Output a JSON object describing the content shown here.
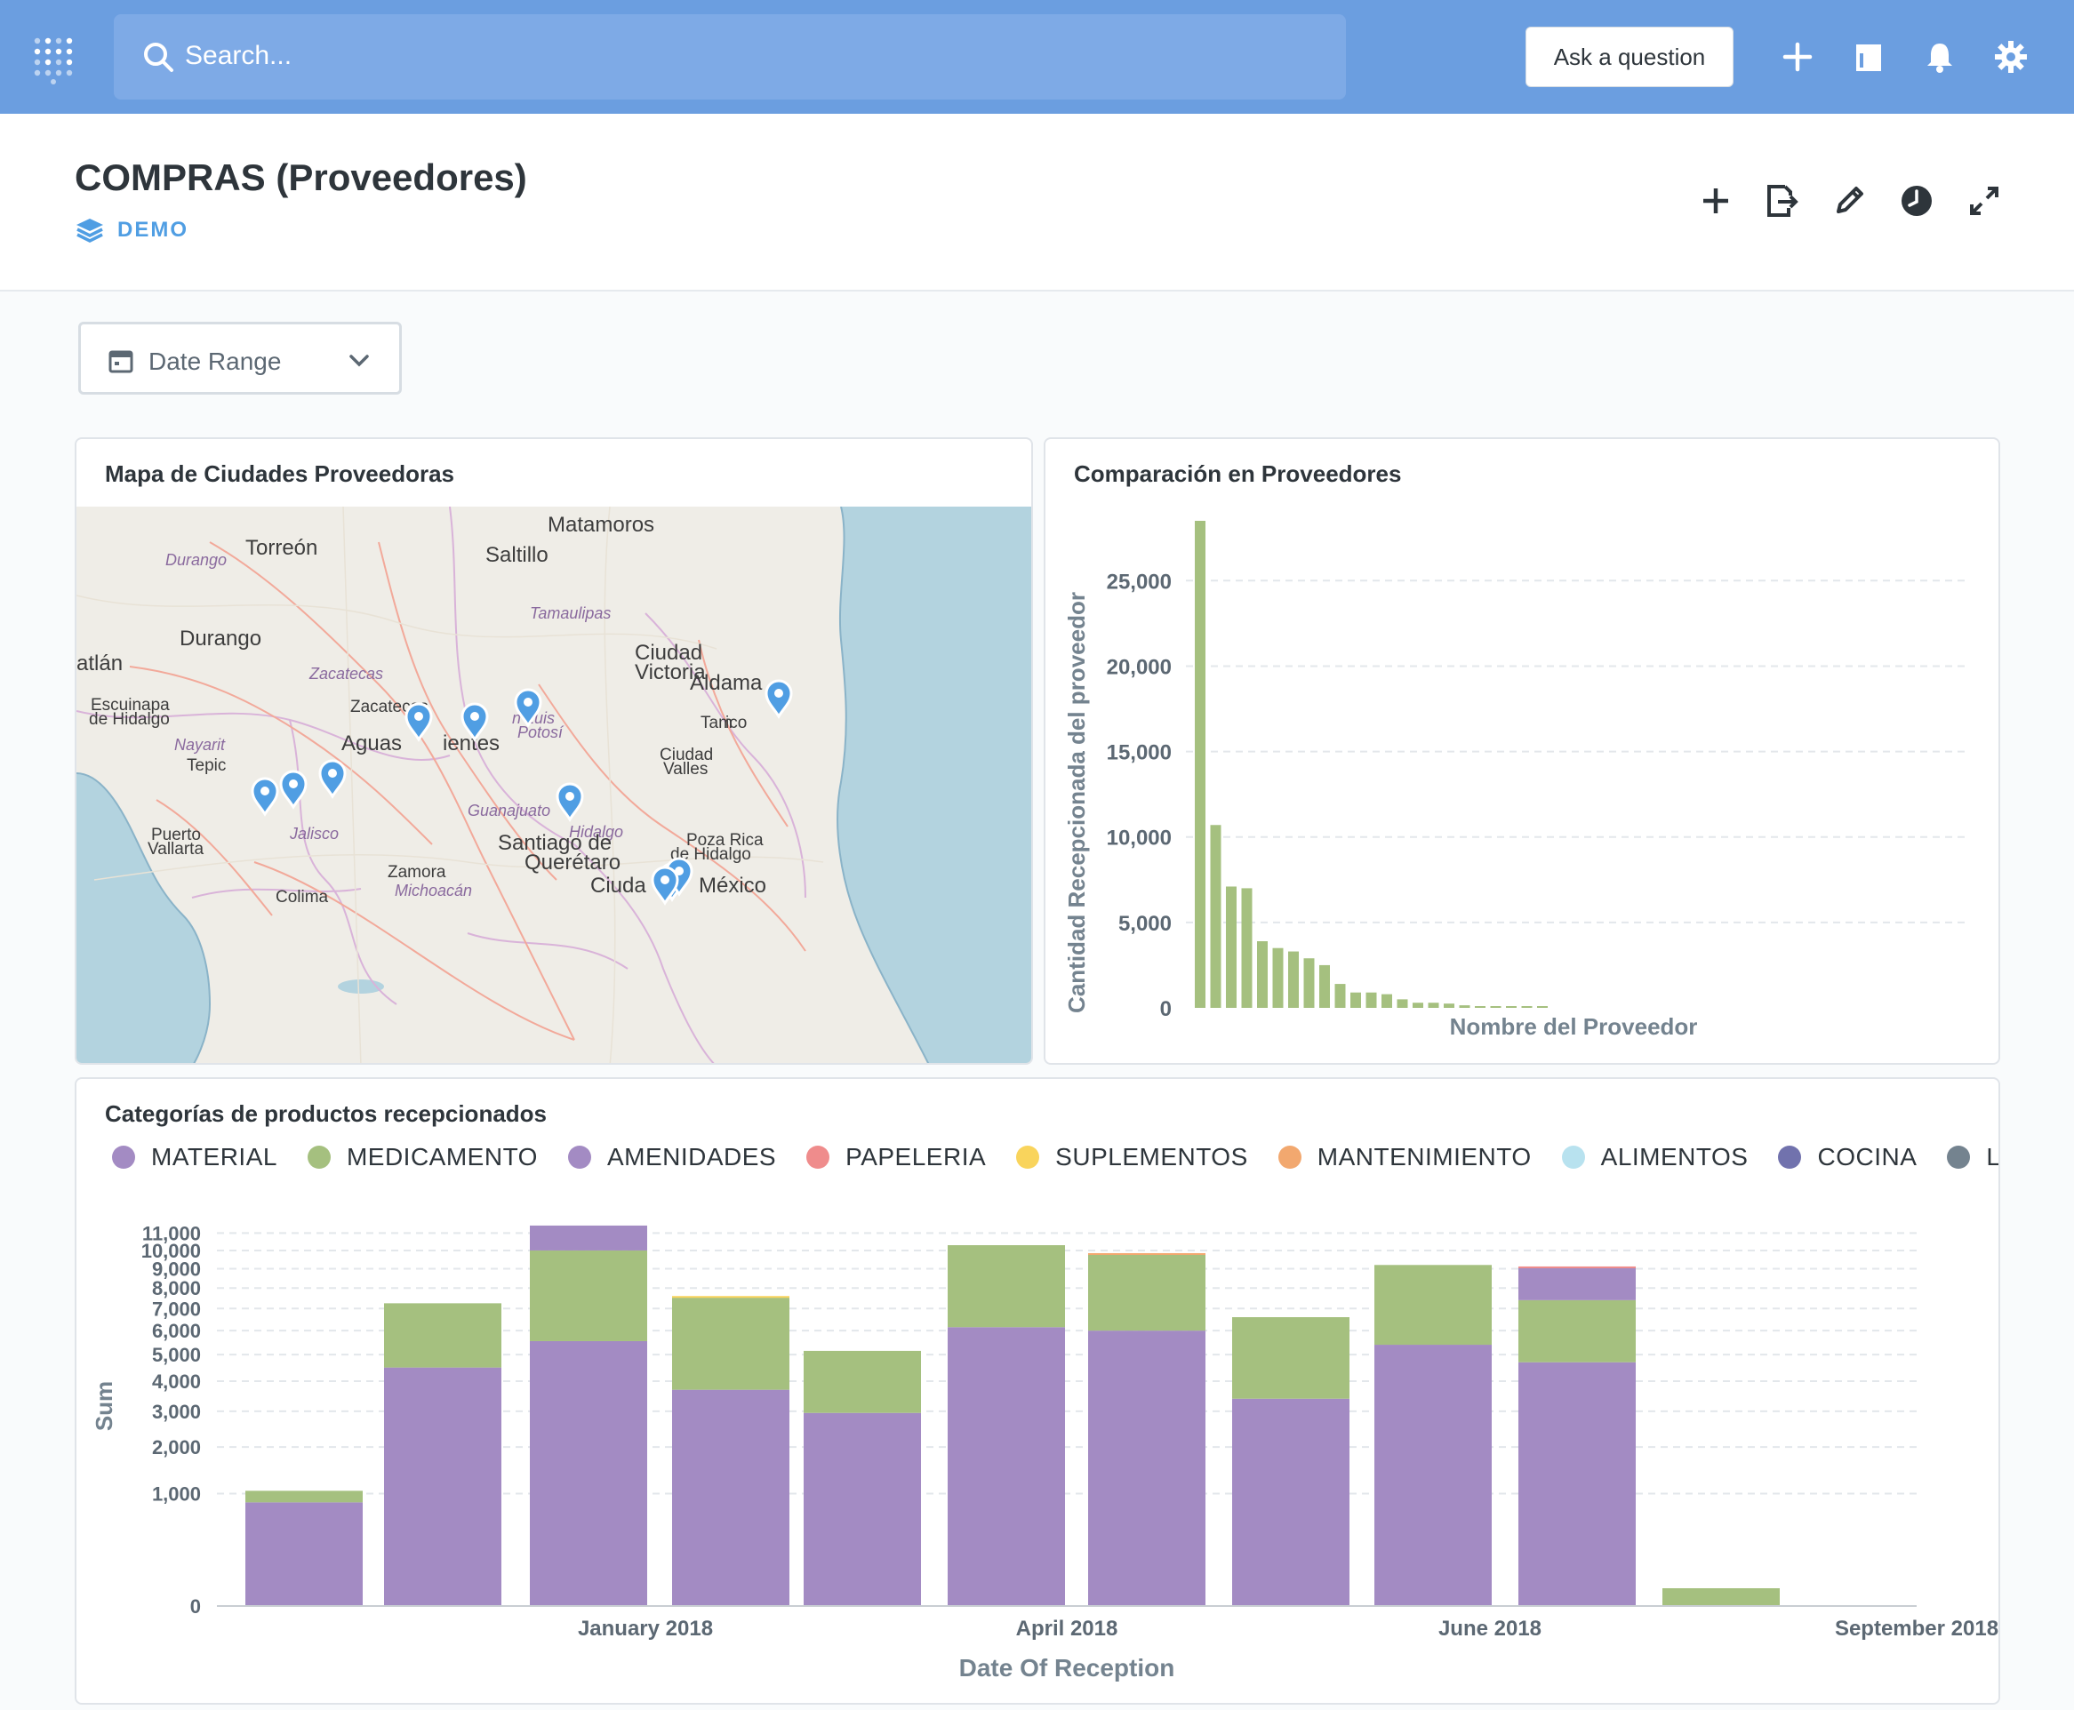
{
  "topbar": {
    "search_placeholder": "Search...",
    "ask_label": "Ask a question",
    "icons": [
      "logo-icon",
      "search-icon",
      "plus-icon",
      "collection-icon",
      "bell-icon",
      "gear-icon"
    ]
  },
  "header": {
    "title": "COMPRAS (Proveedores)",
    "collection": "DEMO",
    "icons": [
      "plus-icon",
      "export-icon",
      "pencil-icon",
      "clock-icon",
      "expand-icon"
    ]
  },
  "filter": {
    "label": "Date Range"
  },
  "colors": {
    "brand": "#509ee3",
    "nav": "#6b9ee0",
    "purple": "#a38bc3",
    "green": "#a5c07f",
    "salmon": "#ef8c8c",
    "yellow": "#f9d45c",
    "orange": "#f2a86f",
    "lightblue": "#98d9d9",
    "indigo": "#7172ad",
    "gray": "#74838f"
  },
  "map_card": {
    "title": "Mapa de Ciudades Proveedoras",
    "places": [
      {
        "name": "Matamoros",
        "kind": "city"
      },
      {
        "name": "Torreón",
        "kind": "city"
      },
      {
        "name": "Saltillo",
        "kind": "city"
      },
      {
        "name": "Durango",
        "kind": "state"
      },
      {
        "name": "Tamaulipas",
        "kind": "state"
      },
      {
        "name": "Durango",
        "kind": "city"
      },
      {
        "name": "Ciudad",
        "kind": "city"
      },
      {
        "name": "Victoria",
        "kind": "city"
      },
      {
        "name": "atlán",
        "kind": "city"
      },
      {
        "name": "Zacatecas",
        "kind": "state"
      },
      {
        "name": "Aldama",
        "kind": "city"
      },
      {
        "name": "Escuinapa",
        "kind": "small"
      },
      {
        "name": "de Hidalgo",
        "kind": "small"
      },
      {
        "name": "Zacatecas",
        "kind": "small"
      },
      {
        "name": "n Luis",
        "kind": "state"
      },
      {
        "name": "Potosí",
        "kind": "state"
      },
      {
        "name": "Tam",
        "kind": "small"
      },
      {
        "name": "ico",
        "kind": "small"
      },
      {
        "name": "Aguas",
        "kind": "city"
      },
      {
        "name": "ientes",
        "kind": "city"
      },
      {
        "name": "Nayarit",
        "kind": "state"
      },
      {
        "name": "Ciudad",
        "kind": "small"
      },
      {
        "name": "Tepic",
        "kind": "small"
      },
      {
        "name": "Valles",
        "kind": "small"
      },
      {
        "name": "Guanajuato",
        "kind": "state"
      },
      {
        "name": "Puerto",
        "kind": "small"
      },
      {
        "name": "Jalisco",
        "kind": "state"
      },
      {
        "name": "Hidalgo",
        "kind": "state"
      },
      {
        "name": "Poza Rica",
        "kind": "small"
      },
      {
        "name": "Vallarta",
        "kind": "small"
      },
      {
        "name": "Santiago de",
        "kind": "city"
      },
      {
        "name": "de Hidalgo",
        "kind": "small"
      },
      {
        "name": "Querétaro",
        "kind": "city"
      },
      {
        "name": "Zamora",
        "kind": "small"
      },
      {
        "name": "Ciuda",
        "kind": "city"
      },
      {
        "name": "México",
        "kind": "city"
      },
      {
        "name": "Michoacán",
        "kind": "state"
      },
      {
        "name": "Colima",
        "kind": "small"
      }
    ]
  },
  "bar_card": {
    "title": "Comparación en Proveedores",
    "chart_data": {
      "type": "bar",
      "title": "Comparación en Proveedores",
      "xlabel": "Nombre del Proveedor",
      "ylabel": "Cantidad Recepcionada del proveedor",
      "ylim": [
        0,
        28500
      ],
      "yticks": [
        "0",
        "5,000",
        "10,000",
        "15,000",
        "20,000",
        "25,000"
      ],
      "ytick_values": [
        0,
        5000,
        10000,
        15000,
        20000,
        25000
      ],
      "values": [
        28500,
        10700,
        7100,
        7000,
        3900,
        3500,
        3300,
        2900,
        2500,
        1400,
        900,
        900,
        800,
        500,
        300,
        300,
        250,
        150,
        100,
        80,
        60,
        50,
        40
      ],
      "color": "#a5c07f",
      "grid": true
    }
  },
  "stack_card": {
    "title": "Categorías de productos recepcionados",
    "legend": [
      {
        "label": "MATERIAL",
        "color": "#a38bc3"
      },
      {
        "label": "MEDICAMENTO",
        "color": "#a5c07f"
      },
      {
        "label": "AMENIDADES",
        "color": "#a38bc3"
      },
      {
        "label": "PAPELERIA",
        "color": "#ef8c8c"
      },
      {
        "label": "SUPLEMENTOS",
        "color": "#f9d45c"
      },
      {
        "label": "MANTENIMIENTO",
        "color": "#f2a86f"
      },
      {
        "label": "ALIMENTOS",
        "color": "#b8e2ef"
      },
      {
        "label": "COCINA",
        "color": "#7172ad"
      },
      {
        "label": "LIMPIEZA",
        "color": "#74838f"
      }
    ],
    "chart_data": {
      "type": "bar",
      "stacked": true,
      "title": "Categorías de productos recepcionados",
      "xlabel": "Date Of Reception",
      "ylabel": "Sum",
      "y_scale": "sqrt",
      "ylim": [
        0,
        11500
      ],
      "yticks": [
        "0",
        "1,000",
        "2,000",
        "3,000",
        "4,000",
        "5,000",
        "6,000",
        "7,000",
        "8,000",
        "9,000",
        "10,000",
        "11,000"
      ],
      "ytick_values": [
        0,
        1000,
        2000,
        3000,
        4000,
        5000,
        6000,
        7000,
        8000,
        9000,
        10000,
        11000
      ],
      "xticks": [
        "January 2018",
        "April 2018",
        "June 2018",
        "September 2018"
      ],
      "bars": [
        {
          "MATERIAL": 850,
          "MEDICAMENTO": 200
        },
        {
          "MATERIAL": 4500,
          "MEDICAMENTO": 2750
        },
        {
          "MATERIAL": 5550,
          "MEDICAMENTO": 4450,
          "AMENIDADES": 1450
        },
        {
          "MATERIAL": 3700,
          "MEDICAMENTO": 3820,
          "SUPLEMENTOS": 80
        },
        {
          "MATERIAL": 2950,
          "MEDICAMENTO": 2200
        },
        {
          "MATERIAL": 6150,
          "MEDICAMENTO": 4150
        },
        {
          "MATERIAL": 6000,
          "MEDICAMENTO": 3750,
          "MANTENIMIENTO": 100
        },
        {
          "MATERIAL": 3400,
          "MEDICAMENTO": 3200
        },
        {
          "MATERIAL": 5400,
          "MEDICAMENTO": 3800
        },
        {
          "MATERIAL": 4700,
          "MEDICAMENTO": 2700,
          "AMENIDADES": 1650,
          "PAPELERIA": 70
        },
        {
          "MEDICAMENTO": 25
        }
      ],
      "grid": true
    }
  }
}
